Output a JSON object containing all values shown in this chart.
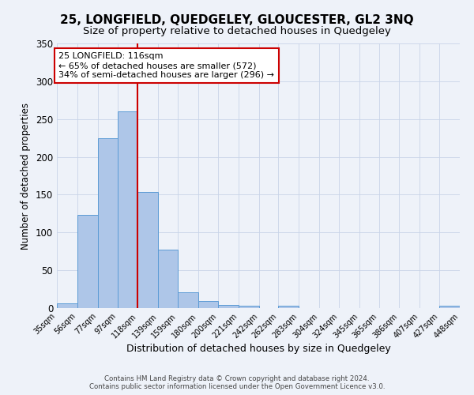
{
  "title": "25, LONGFIELD, QUEDGELEY, GLOUCESTER, GL2 3NQ",
  "subtitle": "Size of property relative to detached houses in Quedgeley",
  "xlabel": "Distribution of detached houses by size in Quedgeley",
  "ylabel": "Number of detached properties",
  "bar_edges": [
    35,
    56,
    77,
    97,
    118,
    139,
    159,
    180,
    200,
    221,
    242,
    262,
    283,
    304,
    324,
    345,
    365,
    386,
    407,
    427,
    448
  ],
  "bar_heights": [
    6,
    123,
    225,
    260,
    154,
    77,
    21,
    9,
    4,
    3,
    0,
    3,
    0,
    0,
    0,
    0,
    0,
    0,
    0,
    3
  ],
  "bar_color": "#aec6e8",
  "bar_edge_color": "#5b9bd5",
  "vline_x": 118,
  "vline_color": "#cc0000",
  "annotation_text": "25 LONGFIELD: 116sqm\n← 65% of detached houses are smaller (572)\n34% of semi-detached houses are larger (296) →",
  "annotation_box_color": "#ffffff",
  "annotation_box_edge": "#cc0000",
  "annotation_fontsize": 8,
  "background_color": "#eef2f9",
  "ylim": [
    0,
    350
  ],
  "yticks": [
    0,
    50,
    100,
    150,
    200,
    250,
    300,
    350
  ],
  "footer_line1": "Contains HM Land Registry data © Crown copyright and database right 2024.",
  "footer_line2": "Contains public sector information licensed under the Open Government Licence v3.0.",
  "title_fontsize": 11,
  "subtitle_fontsize": 9.5,
  "xlabel_fontsize": 9,
  "ylabel_fontsize": 8.5,
  "tick_labels": [
    "35sqm",
    "56sqm",
    "77sqm",
    "97sqm",
    "118sqm",
    "139sqm",
    "159sqm",
    "180sqm",
    "200sqm",
    "221sqm",
    "242sqm",
    "262sqm",
    "283sqm",
    "304sqm",
    "324sqm",
    "345sqm",
    "365sqm",
    "386sqm",
    "407sqm",
    "427sqm",
    "448sqm"
  ]
}
